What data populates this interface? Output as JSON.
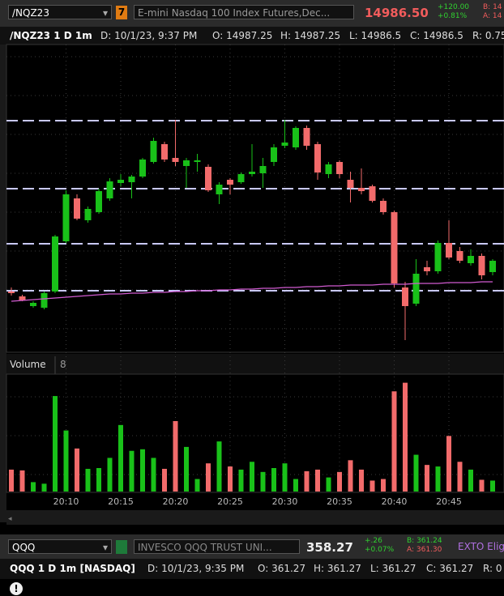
{
  "header": {
    "symbol": "/NQZ23",
    "badge": "7",
    "description": "E-mini Nasdaq 100 Index Futures,Dec...",
    "last": "14986.50",
    "change": "+120.00",
    "change_pct": "+0.81%",
    "bid": "B: 14",
    "ask": "A: 14"
  },
  "info_bar": {
    "title": "/NQZ23 1 D 1m",
    "date": "D: 10/1/23, 9:37 PM",
    "open": "O: 14987.25",
    "high": "H: 14987.25",
    "low": "L: 14986.5",
    "close": "C: 14986.5",
    "range": "R: 0.75"
  },
  "volume_header": {
    "title": "Volume",
    "count": "8"
  },
  "qqq_header": {
    "symbol": "QQQ",
    "description": "INVESCO QQQ TRUST UNI...",
    "last": "358.27",
    "change": "+.26",
    "change_pct": "+0.07%",
    "bid": "B: 361.24",
    "ask": "A: 361.30",
    "badge": "EXTO Elig"
  },
  "qqq_info": {
    "title": "QQQ 1 D 1m [NASDAQ]",
    "date": "D: 10/1/23, 9:35 PM",
    "open": "O: 361.27",
    "high": "H: 361.27",
    "low": "L: 361.27",
    "close": "C: 361.27",
    "range": "R: 0"
  },
  "chart_data": {
    "type": "candlestick",
    "up_color": "#19c119",
    "down_color": "#f26b6b",
    "categories": [
      null,
      null,
      null,
      null,
      null,
      "20:10",
      null,
      null,
      null,
      null,
      "20:15",
      null,
      null,
      null,
      null,
      "20:20",
      null,
      null,
      null,
      null,
      "20:25",
      null,
      null,
      null,
      null,
      "20:30",
      null,
      null,
      null,
      null,
      "20:35",
      null,
      null,
      null,
      null,
      "20:40",
      null,
      null,
      null,
      null,
      "20:45",
      null,
      null,
      null,
      null
    ],
    "open": [
      14979,
      14977.5,
      14974.5,
      14974,
      14979,
      14994.5,
      15007.75,
      15001,
      15003.5,
      15007.75,
      15012.5,
      15012.75,
      15014.5,
      15019,
      15024.5,
      15020.25,
      15017.75,
      15019,
      15017.5,
      15009,
      15013.5,
      15012.75,
      15015.25,
      15015.5,
      15019,
      15024,
      15023.5,
      15029.5,
      15024.5,
      15015.25,
      15019,
      15013.5,
      15011,
      15011.5,
      15007,
      15003.5,
      14980.25,
      14975.25,
      14986.5,
      14985.25,
      14994,
      14991.5,
      14987.75,
      14990,
      14985
    ],
    "high": [
      14980.25,
      14978,
      14976,
      14979,
      14996.5,
      15010.25,
      15009,
      15005.25,
      15010.75,
      15014,
      15015.25,
      15015,
      15020.25,
      15026.5,
      15025.25,
      15032,
      15020.25,
      15021.5,
      15018.25,
      15012.75,
      15014,
      15015.75,
      15024.5,
      15020.25,
      15024.5,
      15032,
      15030,
      15030.25,
      15025.25,
      15019,
      15019.5,
      15016,
      15017,
      15012,
      15007.75,
      15004,
      14982,
      14989,
      14988.5,
      14994.75,
      15001,
      14992.75,
      14992,
      14990.75,
      14989
    ],
    "low": [
      14977.75,
      14976,
      14974,
      14973.5,
      14978.5,
      14994,
      15001,
      15000.25,
      15003,
      15007,
      15011.5,
      15007.75,
      15014,
      15018.5,
      15019,
      15017.75,
      15011,
      15016,
      15009.75,
      15006,
      15009,
      15012.25,
      15014.5,
      15011,
      15017.75,
      15023.25,
      15022.75,
      15022.75,
      15013.5,
      15014,
      15014,
      15006.5,
      15009,
      15006.5,
      15002.75,
      14980.25,
      14964,
      14974.5,
      14984,
      14984.5,
      14989,
      14987.75,
      14987,
      14982.75,
      14984
    ],
    "close": [
      14978.5,
      14976.25,
      14975.5,
      14978.5,
      14996,
      15009,
      15001.5,
      15004.5,
      15010,
      15013,
      15013.5,
      15014.5,
      15019.75,
      15025.5,
      15019.75,
      15019,
      15019.5,
      15019.5,
      15010.25,
      15012,
      15012,
      15015.25,
      15016,
      15017.75,
      15023.5,
      15025,
      15029.5,
      15024,
      15015.75,
      15018.25,
      15015.25,
      15011,
      15010,
      15007,
      15003.5,
      14981.5,
      14974.5,
      14984.5,
      14985.25,
      14994,
      14989.5,
      14988.5,
      14990,
      14984,
      14988.5
    ],
    "ylim": [
      14960.25,
      15055.25
    ],
    "levels": [
      15031.75,
      15010.75,
      14993.75,
      14979.25
    ],
    "level_color": "#c9c9ff",
    "ma": {
      "color": "#d15bd1",
      "values": [
        14976.0,
        14976.25,
        14976.5,
        14976.75,
        14977.0,
        14977.25,
        14977.5,
        14977.75,
        14978.0,
        14978.25,
        14978.25,
        14978.5,
        14978.5,
        14978.75,
        14978.75,
        14979.0,
        14979.0,
        14979.25,
        14979.25,
        14979.5,
        14979.5,
        14979.75,
        14979.75,
        14980.0,
        14980.0,
        14980.25,
        14980.25,
        14980.5,
        14980.5,
        14980.75,
        14980.75,
        14981.0,
        14981.0,
        14981.0,
        14981.25,
        14981.25,
        14981.25,
        14981.5,
        14981.5,
        14981.5,
        14981.75,
        14981.75,
        14981.75,
        14982.0,
        14982.0
      ]
    },
    "volume": {
      "ylim": [
        0,
        1500
      ],
      "values": [
        280,
        270,
        120,
        100,
        1220,
        780,
        550,
        290,
        300,
        430,
        850,
        520,
        540,
        430,
        290,
        900,
        570,
        160,
        360,
        640,
        320,
        280,
        380,
        250,
        300,
        360,
        160,
        260,
        280,
        180,
        250,
        400,
        280,
        140,
        160,
        1280,
        1390,
        470,
        340,
        320,
        710,
        380,
        280,
        150,
        140
      ]
    }
  }
}
